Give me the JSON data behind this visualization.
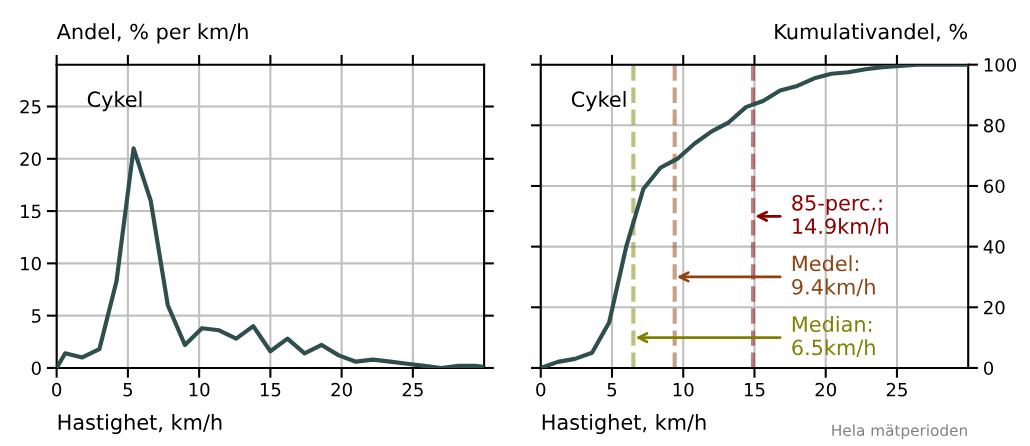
{
  "chart_data": [
    {
      "type": "line",
      "ylabel": "Andel, % per km/h",
      "xlabel": "Hastighet, km/h",
      "annotations": [
        "Cykel"
      ],
      "x": [
        0,
        0.6,
        1.8,
        3.0,
        4.2,
        5.4,
        6.6,
        7.8,
        9.0,
        10.2,
        11.4,
        12.6,
        13.8,
        15.0,
        16.2,
        17.4,
        18.6,
        19.8,
        21.0,
        22.2,
        23.4,
        24.6,
        25.8,
        27.0,
        28.2,
        29.4,
        30
      ],
      "series": [
        {
          "color": "#2f4f4f",
          "values": [
            0,
            1.4,
            1.0,
            1.8,
            8.3,
            21,
            16,
            6,
            2.2,
            3.8,
            3.6,
            2.8,
            4,
            1.6,
            2.8,
            1.4,
            2.2,
            1.2,
            0.6,
            0.8,
            0.6,
            0.4,
            0.2,
            0,
            0.2,
            0.2,
            0.1
          ]
        }
      ],
      "xlim": [
        0,
        30
      ],
      "xticks": [
        0,
        5,
        10,
        15,
        20,
        25
      ],
      "ylim": [
        0,
        29
      ],
      "yticks": [
        0,
        5,
        10,
        15,
        20,
        25
      ],
      "grid": true,
      "legend": false,
      "tick_labels": "xy"
    },
    {
      "type": "line",
      "y2label": "Kumulativandel, %",
      "xlabel": "Hastighet, km/h",
      "annotations": [
        "Cykel",
        "Hela mätperioden"
      ],
      "x": [
        0,
        1.2,
        2.4,
        3.6,
        4.8,
        6.0,
        7.2,
        8.4,
        9.6,
        10.8,
        12.0,
        13.2,
        14.4,
        15.6,
        16.8,
        18.0,
        19.2,
        20.4,
        21.6,
        22.8,
        24.0,
        25.2,
        26.4,
        30
      ],
      "series": [
        {
          "color": "#2f4f4f",
          "axis": "y2",
          "values": [
            0,
            2,
            3,
            5,
            15,
            40,
            59,
            66,
            69,
            74,
            78,
            81,
            86,
            88,
            91.5,
            93,
            95.5,
            97,
            97.5,
            98.5,
            99.2,
            99.6,
            100,
            100
          ]
        }
      ],
      "ref_lines": [
        {
          "axis": "x",
          "value": 14.9,
          "label": "85-perc.:\n14.9km/h",
          "color": "#8b0000",
          "line_style": "dashed"
        },
        {
          "axis": "x",
          "value": 9.4,
          "label": "Medel:\n9.4km/h",
          "color": "#8b4513",
          "line_style": "dashed"
        },
        {
          "axis": "x",
          "value": 6.5,
          "label": "Median:\n6.5km/h",
          "color": "#808000",
          "line_style": "dashed"
        }
      ],
      "xlim": [
        0,
        30
      ],
      "xticks": [
        0,
        5,
        10,
        15,
        20,
        25
      ],
      "y2lim": [
        0,
        100
      ],
      "y2ticks": [
        0,
        20,
        40,
        60,
        80,
        100
      ],
      "grid": true,
      "legend": false,
      "tick_labels": "xy2"
    }
  ]
}
